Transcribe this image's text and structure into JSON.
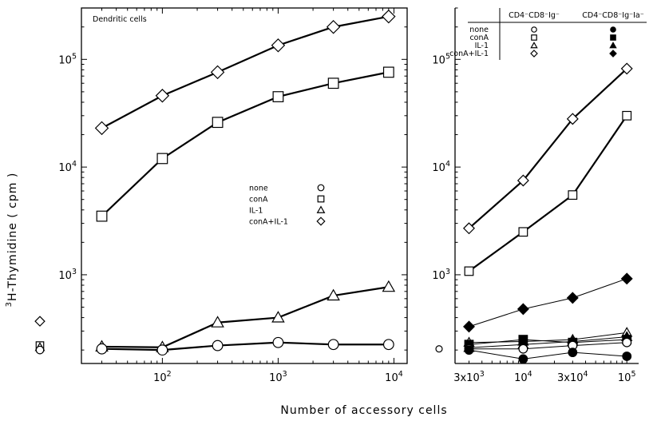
{
  "chart_data": [
    {
      "type": "line",
      "title": "Dendritic cells",
      "xlabel": "Number of accessory cells",
      "ylabel": "³H-Thymidine ( cpm )",
      "xscale": "log",
      "yscale": "log",
      "xlim": [
        20,
        13000
      ],
      "ylim": [
        150,
        300000
      ],
      "x_ticks": [
        100,
        1000,
        10000
      ],
      "x_tick_labels": [
        {
          "base": "10",
          "exp": "2"
        },
        {
          "base": "10",
          "exp": "3"
        },
        {
          "base": "10",
          "exp": "4"
        }
      ],
      "y_ticks": [
        1000,
        10000,
        100000
      ],
      "y_tick_labels": [
        {
          "base": "10",
          "exp": "3"
        },
        {
          "base": "10",
          "exp": "4"
        },
        {
          "base": "10",
          "exp": "5"
        }
      ],
      "legend": {
        "placement": "center-right",
        "entries": [
          {
            "label": "none",
            "marker": "circle-open"
          },
          {
            "label": "conA",
            "marker": "square-open"
          },
          {
            "label": "IL-1",
            "marker": "triangle-open"
          },
          {
            "label": "conA+IL-1",
            "marker": "diamond-open"
          }
        ]
      },
      "series": [
        {
          "marker": "diamond-open",
          "x": [
            30,
            100,
            300,
            1000,
            3000,
            9000
          ],
          "y": [
            23000,
            46000,
            76000,
            135000,
            200000,
            250000
          ]
        },
        {
          "marker": "square-open",
          "x": [
            30,
            100,
            300,
            1000,
            3000,
            9000
          ],
          "y": [
            3500,
            12000,
            26000,
            45000,
            60000,
            76000
          ]
        },
        {
          "marker": "triangle-open",
          "x": [
            30,
            100,
            300,
            1000,
            3000,
            9000
          ],
          "y": [
            215,
            212,
            360,
            400,
            640,
            770
          ]
        },
        {
          "marker": "circle-open",
          "x": [
            30,
            100,
            300,
            1000,
            3000,
            9000
          ],
          "y": [
            205,
            200,
            220,
            235,
            225,
            225
          ]
        }
      ],
      "background_points": [
        {
          "marker": "diamond-open",
          "y": 370
        },
        {
          "marker": "square-open",
          "y": 220
        },
        {
          "marker": "triangle-open",
          "y": 212
        },
        {
          "marker": "circle-open",
          "y": 200
        }
      ]
    },
    {
      "type": "line",
      "xscale": "log",
      "yscale": "log",
      "xlim": [
        2200,
        130000
      ],
      "ylim": [
        150,
        300000
      ],
      "x_ticks": [
        3000,
        10000,
        30000,
        100000
      ],
      "x_tick_labels": [
        {
          "base": "3x10",
          "exp": "3"
        },
        {
          "base": "10",
          "exp": "4"
        },
        {
          "base": "3x10",
          "exp": "4"
        },
        {
          "base": "10",
          "exp": "5"
        }
      ],
      "y_ticks": [
        1000,
        10000,
        100000
      ],
      "y_tick_labels": [
        {
          "base": "10",
          "exp": "3"
        },
        {
          "base": "10",
          "exp": "4"
        },
        {
          "base": "10",
          "exp": "5"
        }
      ],
      "legend": {
        "placement": "top-right",
        "rows": [
          "none",
          "conA",
          "IL-1",
          "conA+IL-1"
        ],
        "columns": [
          {
            "label": "CD4⁻CD8⁻Ig⁻",
            "markers": [
              "circle-open",
              "square-open",
              "triangle-open",
              "diamond-open"
            ]
          },
          {
            "label": "CD4⁻CD8⁻Ig⁻Ia⁻",
            "markers": [
              "circle-filled",
              "square-filled",
              "triangle-filled",
              "diamond-filled"
            ]
          }
        ]
      },
      "series": [
        {
          "marker": "diamond-open",
          "x": [
            3000,
            10000,
            30000,
            100000
          ],
          "y": [
            2700,
            7500,
            28000,
            82000
          ]
        },
        {
          "marker": "square-open",
          "x": [
            3000,
            10000,
            30000,
            100000
          ],
          "y": [
            1080,
            2500,
            5500,
            30000
          ]
        },
        {
          "marker": "diamond-filled",
          "x": [
            3000,
            10000,
            30000,
            100000
          ],
          "y": [
            330,
            480,
            610,
            920
          ]
        },
        {
          "marker": "triangle-open",
          "x": [
            3000,
            10000,
            30000,
            100000
          ],
          "y": [
            235,
            240,
            250,
            290
          ]
        },
        {
          "marker": "square-filled",
          "x": [
            3000,
            10000,
            30000,
            100000
          ],
          "y": [
            225,
            250,
            235,
            250
          ]
        },
        {
          "marker": "triangle-filled",
          "x": [
            3000,
            10000,
            30000,
            100000
          ],
          "y": [
            210,
            225,
            240,
            265
          ]
        },
        {
          "marker": "circle-open",
          "x": [
            3000,
            10000,
            30000,
            100000
          ],
          "y": [
            205,
            205,
            220,
            235
          ]
        },
        {
          "marker": "circle-filled",
          "x": [
            3000,
            10000,
            30000,
            100000
          ],
          "y": [
            200,
            165,
            190,
            175
          ]
        }
      ],
      "background_points": [
        {
          "marker": "circle-open",
          "y": 205
        }
      ]
    }
  ]
}
